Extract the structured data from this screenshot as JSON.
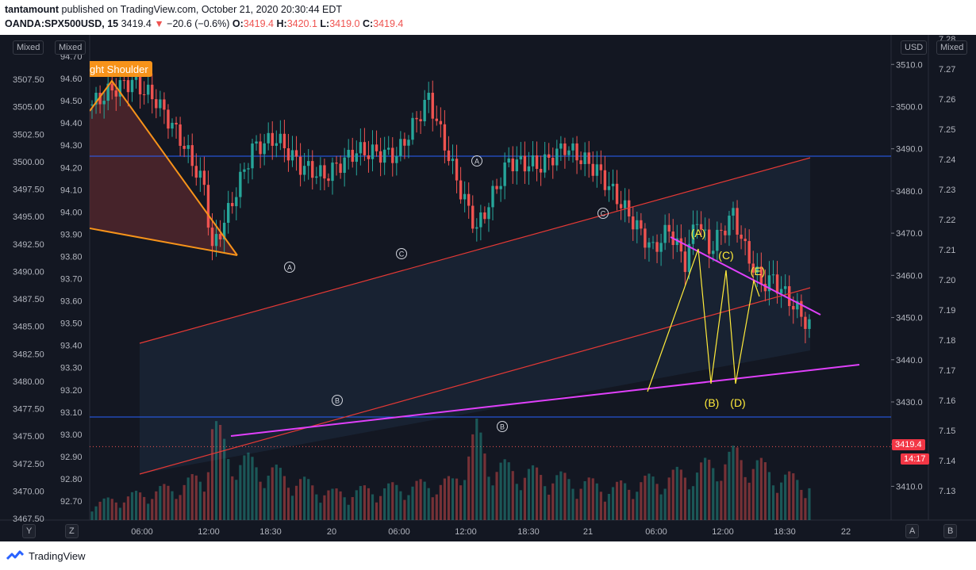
{
  "header": {
    "user": "tantamount",
    "published": "published on TradingView.com, October 21, 2020 20:30:44 EDT",
    "symbol": "OANDA:SPX500USD, 15",
    "last": "3419.4",
    "arrow": "▼",
    "change": "−20.6 (−0.6%)",
    "o_label": "O:",
    "o_value": "3419.4",
    "h_label": "H:",
    "h_value": "3420.1",
    "l_label": "L:",
    "l_value": "3419.0",
    "c_label": "C:",
    "c_value": "3419.4"
  },
  "footer": {
    "logo_text": "TradingView"
  },
  "scale_modes": {
    "left_outer": "Mixed",
    "left_inner": "Mixed",
    "right_currency": "USD",
    "right_outer": "Mixed"
  },
  "corner_buttons": {
    "y": "Y",
    "z": "Z",
    "a": "A",
    "b": "B"
  },
  "price_badge": {
    "price": "3419.4",
    "countdown": "14:17",
    "color": "#f23645"
  },
  "colors": {
    "background": "#131722",
    "bull": "#26a69a",
    "bear": "#ef5350",
    "channel": "#e53935",
    "wedge": "#e040fb",
    "pattern": "#f7931a",
    "hline": "#2962ff",
    "wave": "#ffeb3b"
  },
  "chart_data": {
    "type": "candlestick",
    "symbol": "OANDA:SPX500USD",
    "interval": "15",
    "x_ticks": [
      "06:00",
      "12:00",
      "18:30",
      "20",
      "06:00",
      "12:00",
      "18:30",
      "21",
      "06:00",
      "12:00",
      "18:30",
      "22"
    ],
    "price_axis_right": {
      "ticks": [
        3410.0,
        3420.0,
        3430.0,
        3440.0,
        3450.0,
        3460.0,
        3470.0,
        3480.0,
        3490.0,
        3500.0,
        3510.0
      ],
      "range": [
        3402,
        3517
      ]
    },
    "left_axis_outer": {
      "ticks": [
        "3467.50",
        "3470.00",
        "3472.50",
        "3475.00",
        "3477.50",
        "3480.00",
        "3482.50",
        "3485.00",
        "3487.50",
        "3490.00",
        "3492.50",
        "3495.00",
        "3497.50",
        "3500.00",
        "3502.50",
        "3505.00",
        "3507.50"
      ]
    },
    "left_axis_inner": {
      "ticks": [
        "92.70",
        "92.80",
        "92.90",
        "93.00",
        "93.10",
        "93.20",
        "93.30",
        "93.40",
        "93.50",
        "93.60",
        "93.70",
        "93.80",
        "93.90",
        "94.00",
        "94.10",
        "94.20",
        "94.30",
        "94.40",
        "94.50",
        "94.60",
        "94.70"
      ]
    },
    "right_axis_outer": {
      "ticks": [
        "7.13",
        "7.14",
        "7.15",
        "7.16",
        "7.17",
        "7.18",
        "7.19",
        "7.20",
        "7.21",
        "7.22",
        "7.23",
        "7.24",
        "7.25",
        "7.26",
        "7.27",
        "7.28"
      ]
    },
    "last_price": 3419.4,
    "price_path": [
      [
        0,
        3500.5
      ],
      [
        5,
        3504.0
      ],
      [
        10,
        3506.0
      ],
      [
        16,
        3501.5
      ],
      [
        22,
        3492.5
      ],
      [
        28,
        3481.0
      ],
      [
        30,
        3466.0
      ],
      [
        34,
        3475.0
      ],
      [
        40,
        3490.0
      ],
      [
        46,
        3492.5
      ],
      [
        52,
        3486.0
      ],
      [
        58,
        3483.5
      ],
      [
        66,
        3489.5
      ],
      [
        76,
        3488.5
      ],
      [
        84,
        3502.0
      ],
      [
        92,
        3480.0
      ],
      [
        96,
        3471.0
      ],
      [
        104,
        3487.0
      ],
      [
        112,
        3486.0
      ],
      [
        118,
        3490.5
      ],
      [
        126,
        3485.0
      ],
      [
        132,
        3477.0
      ],
      [
        140,
        3466.0
      ],
      [
        144,
        3471.0
      ],
      [
        148,
        3463.0
      ],
      [
        151,
        3474.0
      ],
      [
        154,
        3466.0
      ],
      [
        160,
        3474.5
      ],
      [
        163,
        3466.0
      ],
      [
        167,
        3458.0
      ],
      [
        170,
        3459.0
      ],
      [
        175,
        3453.0
      ],
      [
        179,
        3448.0
      ]
    ],
    "volume_profile": [
      [
        0,
        0.15
      ],
      [
        20,
        0.3
      ],
      [
        28,
        0.4
      ],
      [
        30,
        0.9
      ],
      [
        34,
        0.6
      ],
      [
        60,
        0.25
      ],
      [
        90,
        0.35
      ],
      [
        93,
        0.55
      ],
      [
        96,
        0.8
      ],
      [
        100,
        0.5
      ],
      [
        130,
        0.3
      ],
      [
        150,
        0.45
      ],
      [
        161,
        0.6
      ],
      [
        172,
        0.4
      ],
      [
        179,
        0.35
      ]
    ],
    "annotations": {
      "pattern_label": "ght Shoulder",
      "circled": [
        "A",
        "C",
        "A",
        "C",
        "B",
        "B"
      ],
      "waves": [
        "(A)",
        "(C)",
        "(E)",
        "(B)",
        "(D)"
      ]
    }
  }
}
